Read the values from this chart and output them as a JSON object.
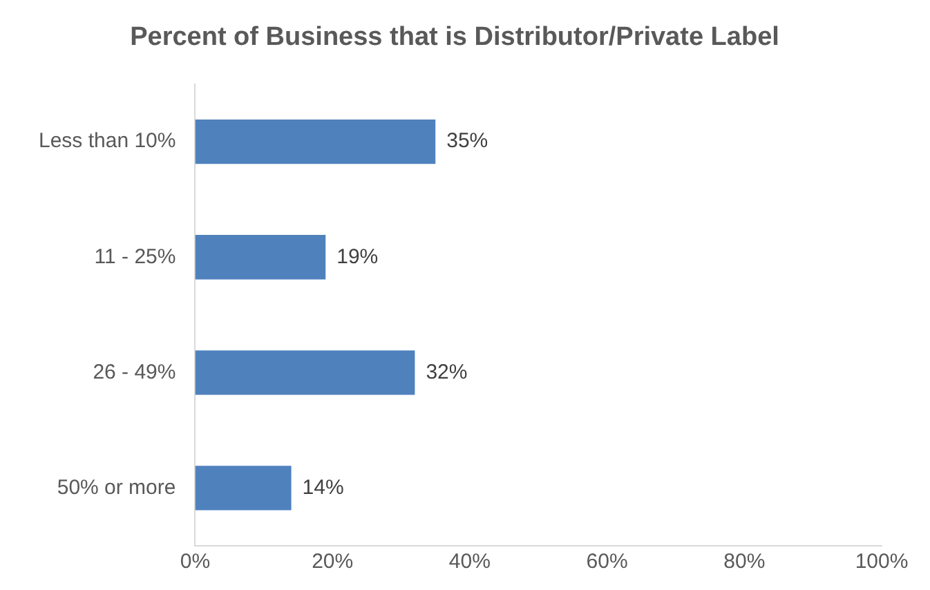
{
  "chart_data": {
    "type": "bar",
    "orientation": "horizontal",
    "title": "Percent of Business that is Distributor/Private Label",
    "categories": [
      "Less than 10%",
      "11 - 25%",
      "26 - 49%",
      "50% or more"
    ],
    "values": [
      35,
      19,
      32,
      14
    ],
    "color": "#4f81bd",
    "value_labels": [
      "35%",
      "19%",
      "32%",
      "14%"
    ],
    "xlim": [
      0,
      100
    ],
    "xticks": [
      {
        "value": 0,
        "label": "0%"
      },
      {
        "value": 20,
        "label": "20%"
      },
      {
        "value": 40,
        "label": "40%"
      },
      {
        "value": 60,
        "label": "60%"
      },
      {
        "value": 80,
        "label": "80%"
      },
      {
        "value": 100,
        "label": "100%"
      }
    ],
    "grid": false
  }
}
